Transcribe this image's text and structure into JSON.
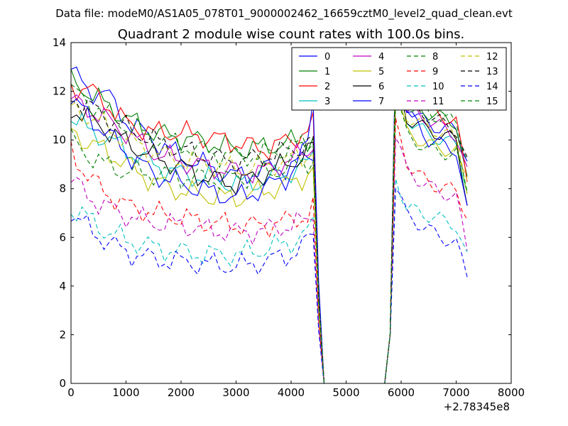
{
  "chart_data": {
    "type": "line",
    "suptitle": "Data file: modeM0/AS1A05_078T01_9000002462_16659cztM0_level2_quad_clean.evt",
    "title": "Quadrant 2 module wise count rates with 100.0s bins.",
    "xlabel": "",
    "ylabel": "",
    "x_offset_label": "+2.78345e8",
    "xlim": [
      0,
      8000
    ],
    "ylim": [
      0,
      14
    ],
    "x_ticks": [
      0,
      1000,
      2000,
      3000,
      4000,
      5000,
      6000,
      7000,
      8000
    ],
    "y_ticks": [
      0,
      2,
      4,
      6,
      8,
      10,
      12,
      14
    ],
    "x_tick_labels": [
      "0",
      "1000",
      "2000",
      "3000",
      "4000",
      "5000",
      "6000",
      "7000",
      "8000"
    ],
    "y_tick_labels": [
      "0",
      "2",
      "4",
      "6",
      "8",
      "10",
      "12",
      "14"
    ],
    "legend_position": "top-right",
    "grid": false,
    "series": [
      {
        "name": "0",
        "color": "#0000ff",
        "dash": "solid",
        "anchors": [
          [
            0,
            12.9
          ],
          [
            300,
            12.0
          ],
          [
            600,
            12.0
          ],
          [
            1000,
            10.8
          ],
          [
            1500,
            10.0
          ],
          [
            2000,
            9.3
          ],
          [
            2500,
            8.9
          ],
          [
            3000,
            8.5
          ],
          [
            3500,
            8.8
          ],
          [
            4000,
            8.9
          ],
          [
            4300,
            9.3
          ],
          [
            4400,
            9.6
          ]
        ],
        "post": [
          [
            5900,
            13.5
          ],
          [
            6100,
            11.4
          ],
          [
            6500,
            10.6
          ],
          [
            7000,
            10.4
          ],
          [
            7200,
            9.3
          ]
        ]
      },
      {
        "name": "1",
        "color": "#008000",
        "dash": "solid",
        "anchors": [
          [
            0,
            12.4
          ],
          [
            300,
            12.0
          ],
          [
            600,
            11.5
          ],
          [
            1000,
            10.9
          ],
          [
            1500,
            10.3
          ],
          [
            2000,
            10.1
          ],
          [
            2500,
            9.9
          ],
          [
            3000,
            9.6
          ],
          [
            3500,
            9.7
          ],
          [
            4000,
            9.9
          ],
          [
            4300,
            10.0
          ],
          [
            4400,
            10.1
          ]
        ],
        "post": [
          [
            5900,
            13.4
          ],
          [
            6100,
            11.6
          ],
          [
            6500,
            11.1
          ],
          [
            7000,
            10.7
          ],
          [
            7200,
            8.2
          ]
        ]
      },
      {
        "name": "2",
        "color": "#ff0000",
        "dash": "solid",
        "anchors": [
          [
            0,
            12.2
          ],
          [
            300,
            12.1
          ],
          [
            600,
            11.6
          ],
          [
            1000,
            10.7
          ],
          [
            1500,
            10.3
          ],
          [
            2000,
            10.3
          ],
          [
            2500,
            10.1
          ],
          [
            3000,
            9.9
          ],
          [
            3500,
            9.6
          ],
          [
            4000,
            10.0
          ],
          [
            4300,
            10.4
          ],
          [
            4400,
            10.6
          ]
        ],
        "post": [
          [
            5900,
            13.6
          ],
          [
            6100,
            11.7
          ],
          [
            6500,
            11.3
          ],
          [
            7000,
            10.7
          ],
          [
            7200,
            8.4
          ]
        ]
      },
      {
        "name": "3",
        "color": "#00bfbf",
        "dash": "solid",
        "anchors": [
          [
            0,
            11.0
          ],
          [
            300,
            10.4
          ],
          [
            600,
            10.1
          ],
          [
            1000,
            9.6
          ],
          [
            1500,
            9.0
          ],
          [
            2000,
            8.6
          ],
          [
            2500,
            8.4
          ],
          [
            3000,
            8.2
          ],
          [
            3500,
            8.3
          ],
          [
            4000,
            8.7
          ],
          [
            4300,
            9.0
          ],
          [
            4400,
            9.4
          ]
        ],
        "post": [
          [
            5900,
            12.6
          ],
          [
            6100,
            10.9
          ],
          [
            6500,
            10.2
          ],
          [
            7000,
            9.8
          ],
          [
            7200,
            8.0
          ]
        ]
      },
      {
        "name": "4",
        "color": "#bf00bf",
        "dash": "solid",
        "anchors": [
          [
            0,
            11.6
          ],
          [
            300,
            11.3
          ],
          [
            600,
            10.9
          ],
          [
            1000,
            10.3
          ],
          [
            1500,
            9.5
          ],
          [
            2000,
            9.1
          ],
          [
            2500,
            8.9
          ],
          [
            3000,
            8.7
          ],
          [
            3500,
            8.7
          ],
          [
            4000,
            9.2
          ],
          [
            4300,
            9.5
          ],
          [
            4400,
            9.9
          ]
        ],
        "post": [
          [
            5900,
            13.1
          ],
          [
            6100,
            11.2
          ],
          [
            6500,
            10.8
          ],
          [
            7000,
            10.2
          ],
          [
            7200,
            8.6
          ]
        ]
      },
      {
        "name": "5",
        "color": "#bfbf00",
        "dash": "solid",
        "anchors": [
          [
            0,
            10.4
          ],
          [
            300,
            9.9
          ],
          [
            600,
            9.6
          ],
          [
            1000,
            9.0
          ],
          [
            1500,
            8.3
          ],
          [
            2000,
            7.9
          ],
          [
            2500,
            7.7
          ],
          [
            3000,
            7.6
          ],
          [
            3500,
            7.9
          ],
          [
            4000,
            8.2
          ],
          [
            4300,
            8.6
          ],
          [
            4400,
            8.9
          ]
        ],
        "post": [
          [
            5900,
            12.1
          ],
          [
            6100,
            10.3
          ],
          [
            6500,
            9.8
          ],
          [
            7000,
            9.5
          ],
          [
            7200,
            7.9
          ]
        ]
      },
      {
        "name": "6",
        "color": "#000000",
        "dash": "solid",
        "anchors": [
          [
            0,
            11.3
          ],
          [
            300,
            10.9
          ],
          [
            600,
            10.5
          ],
          [
            1000,
            9.9
          ],
          [
            1500,
            9.3
          ],
          [
            2000,
            8.9
          ],
          [
            2500,
            8.4
          ],
          [
            3000,
            8.2
          ],
          [
            3500,
            8.6
          ],
          [
            4000,
            9.1
          ],
          [
            4300,
            9.4
          ],
          [
            4400,
            9.8
          ]
        ],
        "post": [
          [
            5900,
            12.8
          ],
          [
            6100,
            10.9
          ],
          [
            6500,
            10.4
          ],
          [
            7000,
            10.0
          ],
          [
            7200,
            7.5
          ]
        ]
      },
      {
        "name": "7",
        "color": "#0000ff",
        "dash": "solid",
        "anchors": [
          [
            0,
            11.7
          ],
          [
            300,
            11.0
          ],
          [
            600,
            10.4
          ],
          [
            1000,
            9.5
          ],
          [
            1500,
            8.6
          ],
          [
            2000,
            8.2
          ],
          [
            2500,
            7.9
          ],
          [
            3000,
            7.6
          ],
          [
            3500,
            8.0
          ],
          [
            4000,
            8.6
          ],
          [
            4300,
            9.8
          ],
          [
            4400,
            11.9
          ]
        ],
        "post": [
          [
            5900,
            13.9
          ],
          [
            6100,
            11.2
          ],
          [
            6500,
            10.0
          ],
          [
            7000,
            9.6
          ],
          [
            7200,
            7.0
          ]
        ]
      },
      {
        "name": "8",
        "color": "#008000",
        "dash": "dashed",
        "anchors": [
          [
            0,
            10.0
          ],
          [
            300,
            9.4
          ],
          [
            600,
            9.0
          ],
          [
            1000,
            8.7
          ],
          [
            1500,
            8.6
          ],
          [
            2000,
            8.5
          ],
          [
            2500,
            8.4
          ],
          [
            3000,
            8.4
          ],
          [
            3500,
            8.6
          ],
          [
            4000,
            8.9
          ],
          [
            4300,
            9.1
          ],
          [
            4400,
            9.3
          ]
        ],
        "post": [
          [
            5900,
            11.9
          ],
          [
            6100,
            10.2
          ],
          [
            6500,
            9.6
          ],
          [
            7000,
            9.4
          ],
          [
            7200,
            8.0
          ]
        ]
      },
      {
        "name": "9",
        "color": "#ff0000",
        "dash": "dashed",
        "anchors": [
          [
            0,
            9.6
          ],
          [
            300,
            8.5
          ],
          [
            600,
            7.9
          ],
          [
            1000,
            7.3
          ],
          [
            1500,
            7.0
          ],
          [
            2000,
            6.8
          ],
          [
            2500,
            6.6
          ],
          [
            3000,
            6.5
          ],
          [
            3500,
            6.5
          ],
          [
            4000,
            6.7
          ],
          [
            4300,
            6.9
          ],
          [
            4400,
            7.2
          ]
        ],
        "post": [
          [
            5900,
            10.6
          ],
          [
            6100,
            9.1
          ],
          [
            6500,
            8.2
          ],
          [
            7000,
            7.9
          ],
          [
            7200,
            6.9
          ]
        ]
      },
      {
        "name": "10",
        "color": "#00bfbf",
        "dash": "dashed",
        "anchors": [
          [
            0,
            7.2
          ],
          [
            300,
            6.8
          ],
          [
            600,
            6.3
          ],
          [
            1000,
            5.9
          ],
          [
            1500,
            5.6
          ],
          [
            2000,
            5.4
          ],
          [
            2500,
            5.3
          ],
          [
            3000,
            5.3
          ],
          [
            3500,
            5.5
          ],
          [
            4000,
            5.8
          ],
          [
            4300,
            6.2
          ],
          [
            4400,
            6.5
          ]
        ],
        "post": [
          [
            5900,
            8.5
          ],
          [
            6100,
            7.2
          ],
          [
            6500,
            6.9
          ],
          [
            7000,
            6.5
          ],
          [
            7200,
            5.1
          ]
        ]
      },
      {
        "name": "11",
        "color": "#bf00bf",
        "dash": "dashed",
        "anchors": [
          [
            0,
            8.4
          ],
          [
            300,
            7.7
          ],
          [
            600,
            7.3
          ],
          [
            1000,
            6.9
          ],
          [
            1500,
            6.6
          ],
          [
            2000,
            6.5
          ],
          [
            2500,
            6.3
          ],
          [
            3000,
            6.2
          ],
          [
            3500,
            6.3
          ],
          [
            4000,
            6.5
          ],
          [
            4300,
            6.7
          ],
          [
            4400,
            7.0
          ]
        ],
        "post": [
          [
            5900,
            10.3
          ],
          [
            6100,
            8.7
          ],
          [
            6500,
            8.1
          ],
          [
            7000,
            7.6
          ],
          [
            7200,
            5.6
          ]
        ]
      },
      {
        "name": "12",
        "color": "#bfbf00",
        "dash": "dashed",
        "anchors": [
          [
            0,
            11.3
          ],
          [
            300,
            11.0
          ],
          [
            600,
            10.6
          ],
          [
            1000,
            10.0
          ],
          [
            1500,
            9.5
          ],
          [
            2000,
            9.2
          ],
          [
            2500,
            9.0
          ],
          [
            3000,
            8.8
          ],
          [
            3500,
            8.9
          ],
          [
            4000,
            9.2
          ],
          [
            4300,
            9.4
          ],
          [
            4400,
            9.7
          ]
        ],
        "post": [
          [
            5900,
            12.7
          ],
          [
            6100,
            11.0
          ],
          [
            6500,
            10.5
          ],
          [
            7000,
            10.1
          ],
          [
            7200,
            8.5
          ]
        ]
      },
      {
        "name": "13",
        "color": "#000000",
        "dash": "dashed",
        "anchors": [
          [
            0,
            11.8
          ],
          [
            300,
            11.4
          ],
          [
            600,
            11.0
          ],
          [
            1000,
            10.5
          ],
          [
            1500,
            10.0
          ],
          [
            2000,
            9.6
          ],
          [
            2500,
            9.3
          ],
          [
            3000,
            9.1
          ],
          [
            3500,
            9.3
          ],
          [
            4000,
            9.6
          ],
          [
            4300,
            9.8
          ],
          [
            4400,
            10.0
          ]
        ],
        "post": [
          [
            5900,
            13.0
          ],
          [
            6100,
            11.3
          ],
          [
            6500,
            11.0
          ],
          [
            7000,
            10.4
          ],
          [
            7200,
            9.0
          ]
        ]
      },
      {
        "name": "14",
        "color": "#0000ff",
        "dash": "dashed",
        "anchors": [
          [
            0,
            7.0
          ],
          [
            300,
            6.4
          ],
          [
            600,
            5.9
          ],
          [
            1000,
            5.4
          ],
          [
            1500,
            5.1
          ],
          [
            2000,
            5.0
          ],
          [
            2500,
            4.9
          ],
          [
            3000,
            4.8
          ],
          [
            3500,
            5.0
          ],
          [
            4000,
            5.3
          ],
          [
            4300,
            5.8
          ],
          [
            4400,
            6.2
          ]
        ],
        "post": [
          [
            5900,
            8.2
          ],
          [
            6100,
            6.9
          ],
          [
            6500,
            6.3
          ],
          [
            7000,
            5.7
          ],
          [
            7200,
            4.5
          ]
        ]
      },
      {
        "name": "15",
        "color": "#008000",
        "dash": "dashed",
        "anchors": [
          [
            0,
            12.0
          ],
          [
            300,
            11.6
          ],
          [
            600,
            11.1
          ],
          [
            1000,
            10.6
          ],
          [
            1500,
            10.1
          ],
          [
            2000,
            9.8
          ],
          [
            2500,
            9.5
          ],
          [
            3000,
            9.3
          ],
          [
            3500,
            9.4
          ],
          [
            4000,
            9.7
          ],
          [
            4300,
            9.9
          ],
          [
            4400,
            10.1
          ]
        ],
        "post": [
          [
            5900,
            13.2
          ],
          [
            6100,
            11.5
          ],
          [
            6500,
            11.1
          ],
          [
            7000,
            10.7
          ],
          [
            7200,
            9.3
          ]
        ]
      }
    ],
    "gap": {
      "drop_start": 4400,
      "zero_start": 4600,
      "zero_end": 5700,
      "rise_end": 5900,
      "step": 100
    }
  }
}
